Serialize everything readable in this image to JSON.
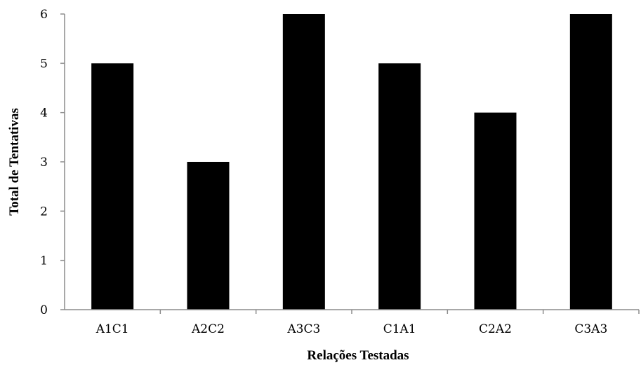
{
  "chart_data": {
    "type": "bar",
    "categories": [
      "A1C1",
      "A2C2",
      "A3C3",
      "C1A1",
      "C2A2",
      "C3A3"
    ],
    "values": [
      5,
      3,
      6,
      5,
      4,
      6
    ],
    "xlabel": "Relações Testadas",
    "ylabel": "Total de Tentativas",
    "ylim": [
      0,
      6
    ],
    "yticks": [
      0,
      1,
      2,
      3,
      4,
      5,
      6
    ],
    "grid": false,
    "legend": "none",
    "bar_color": "#000000",
    "axis_color": "#8c8c8c"
  }
}
